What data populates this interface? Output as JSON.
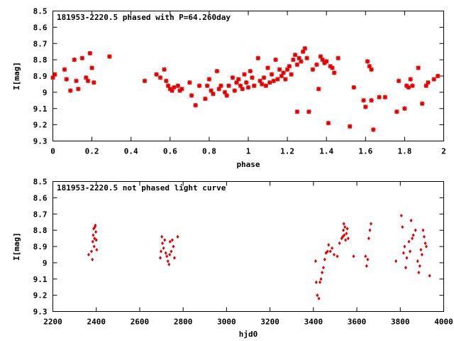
{
  "colors": {
    "points": "#e00000",
    "frame": "#000000",
    "background": "#ffffff"
  },
  "chart_data": [
    {
      "type": "scatter",
      "title": "181953-2220.5 phased with P=64.260day",
      "xlabel": "phase",
      "ylabel": "I[mag]",
      "xlim": [
        0,
        2
      ],
      "ylim": [
        8.5,
        9.3
      ],
      "y_inverted": true,
      "grid": false,
      "x_ticks": [
        "0",
        "0.2",
        "0.4",
        "0.6",
        "0.8",
        "1",
        "1.2",
        "1.4",
        "1.6",
        "1.8",
        "2"
      ],
      "y_ticks": [
        "8.5",
        "8.6",
        "8.7",
        "8.8",
        "8.9",
        "9",
        "9.1",
        "9.2",
        "9.3"
      ],
      "series": [
        {
          "points": [
            [
              0.0,
              8.91
            ],
            [
              0.01,
              8.89
            ],
            [
              0.06,
              8.86
            ],
            [
              0.07,
              8.92
            ],
            [
              0.09,
              8.99
            ],
            [
              0.11,
              8.8
            ],
            [
              0.12,
              8.93
            ],
            [
              0.13,
              8.98
            ],
            [
              0.15,
              8.79
            ],
            [
              0.17,
              8.91
            ],
            [
              0.18,
              8.93
            ],
            [
              0.19,
              8.76
            ],
            [
              0.2,
              8.85
            ],
            [
              0.21,
              8.94
            ],
            [
              0.29,
              8.78
            ],
            [
              0.47,
              8.93
            ],
            [
              0.53,
              8.89
            ],
            [
              0.55,
              8.91
            ],
            [
              0.57,
              8.86
            ],
            [
              0.58,
              8.93
            ],
            [
              0.59,
              8.96
            ],
            [
              0.6,
              8.98
            ],
            [
              0.61,
              8.99
            ],
            [
              0.62,
              8.97
            ],
            [
              0.64,
              8.96
            ],
            [
              0.65,
              8.99
            ],
            [
              0.66,
              8.98
            ],
            [
              0.7,
              8.94
            ],
            [
              0.71,
              9.02
            ],
            [
              0.73,
              9.08
            ],
            [
              0.75,
              8.96
            ],
            [
              0.78,
              9.04
            ],
            [
              0.79,
              8.96
            ],
            [
              0.8,
              8.92
            ],
            [
              0.81,
              8.99
            ],
            [
              0.82,
              9.01
            ],
            [
              0.84,
              8.87
            ],
            [
              0.85,
              8.98
            ],
            [
              0.86,
              8.96
            ],
            [
              0.88,
              9.0
            ],
            [
              0.89,
              9.02
            ],
            [
              0.9,
              8.96
            ],
            [
              0.92,
              8.91
            ],
            [
              0.93,
              8.99
            ],
            [
              0.94,
              8.94
            ],
            [
              0.95,
              8.92
            ],
            [
              0.96,
              8.96
            ],
            [
              0.97,
              8.98
            ],
            [
              0.98,
              8.89
            ],
            [
              0.99,
              8.94
            ],
            [
              1.0,
              8.97
            ],
            [
              1.01,
              8.87
            ],
            [
              1.02,
              8.91
            ],
            [
              1.03,
              8.96
            ],
            [
              1.05,
              8.79
            ],
            [
              1.06,
              8.93
            ],
            [
              1.07,
              8.95
            ],
            [
              1.08,
              8.91
            ],
            [
              1.09,
              8.96
            ],
            [
              1.1,
              8.85
            ],
            [
              1.11,
              8.94
            ],
            [
              1.12,
              8.89
            ],
            [
              1.13,
              8.93
            ],
            [
              1.14,
              8.8
            ],
            [
              1.15,
              8.92
            ],
            [
              1.16,
              8.86
            ],
            [
              1.17,
              8.9
            ],
            [
              1.18,
              8.88
            ],
            [
              1.19,
              8.92
            ],
            [
              1.2,
              8.86
            ],
            [
              1.21,
              8.84
            ],
            [
              1.22,
              8.89
            ],
            [
              1.23,
              8.8
            ],
            [
              1.24,
              8.77
            ],
            [
              1.25,
              8.83
            ],
            [
              1.25,
              9.12
            ],
            [
              1.26,
              8.79
            ],
            [
              1.27,
              8.81
            ],
            [
              1.28,
              8.75
            ],
            [
              1.29,
              8.73
            ],
            [
              1.3,
              8.79
            ],
            [
              1.31,
              9.12
            ],
            [
              1.33,
              8.86
            ],
            [
              1.35,
              8.83
            ],
            [
              1.36,
              8.98
            ],
            [
              1.37,
              8.78
            ],
            [
              1.38,
              8.8
            ],
            [
              1.39,
              8.82
            ],
            [
              1.4,
              8.81
            ],
            [
              1.41,
              9.19
            ],
            [
              1.42,
              8.84
            ],
            [
              1.43,
              8.85
            ],
            [
              1.44,
              8.88
            ],
            [
              1.46,
              8.79
            ],
            [
              1.52,
              9.21
            ],
            [
              1.54,
              8.97
            ],
            [
              1.59,
              9.05
            ],
            [
              1.6,
              9.09
            ],
            [
              1.61,
              8.81
            ],
            [
              1.62,
              8.84
            ],
            [
              1.63,
              8.86
            ],
            [
              1.63,
              9.05
            ],
            [
              1.64,
              9.23
            ],
            [
              1.67,
              9.03
            ],
            [
              1.7,
              9.03
            ],
            [
              1.76,
              9.12
            ],
            [
              1.77,
              8.93
            ],
            [
              1.8,
              9.1
            ],
            [
              1.81,
              8.96
            ],
            [
              1.82,
              8.97
            ],
            [
              1.83,
              8.92
            ],
            [
              1.84,
              8.96
            ],
            [
              1.87,
              8.85
            ],
            [
              1.89,
              9.07
            ],
            [
              1.91,
              8.96
            ],
            [
              1.92,
              8.94
            ],
            [
              1.95,
              8.92
            ],
            [
              1.97,
              8.9
            ]
          ]
        }
      ]
    },
    {
      "type": "scatter",
      "title": "181953-2220.5 not phased light curve",
      "xlabel": "hjd0",
      "ylabel": "I[mag]",
      "xlim": [
        2200,
        4000
      ],
      "ylim": [
        8.5,
        9.3
      ],
      "y_inverted": true,
      "grid": false,
      "x_ticks": [
        "2200",
        "2400",
        "2600",
        "2800",
        "3000",
        "3200",
        "3400",
        "3600",
        "3800",
        "4000"
      ],
      "y_ticks": [
        "8.5",
        "8.6",
        "8.7",
        "8.8",
        "8.9",
        "9",
        "9.1",
        "9.2",
        "9.3"
      ],
      "series": [
        {
          "points": [
            [
              2365,
              8.95
            ],
            [
              2378,
              8.93
            ],
            [
              2382,
              8.98
            ],
            [
              2384,
              8.87
            ],
            [
              2386,
              8.83
            ],
            [
              2388,
              8.79
            ],
            [
              2390,
              8.9
            ],
            [
              2392,
              8.85
            ],
            [
              2394,
              8.78
            ],
            [
              2396,
              8.77
            ],
            [
              2398,
              8.81
            ],
            [
              2400,
              8.86
            ],
            [
              2402,
              8.92
            ],
            [
              2695,
              8.97
            ],
            [
              2698,
              8.93
            ],
            [
              2702,
              8.84
            ],
            [
              2705,
              8.88
            ],
            [
              2710,
              8.91
            ],
            [
              2715,
              8.86
            ],
            [
              2720,
              8.94
            ],
            [
              2725,
              8.96
            ],
            [
              2730,
              8.99
            ],
            [
              2735,
              9.01
            ],
            [
              2738,
              8.95
            ],
            [
              2740,
              8.87
            ],
            [
              2745,
              8.93
            ],
            [
              2750,
              8.86
            ],
            [
              2755,
              8.9
            ],
            [
              2760,
              8.97
            ],
            [
              2775,
              8.84
            ],
            [
              3410,
              8.99
            ],
            [
              3413,
              9.12
            ],
            [
              3418,
              9.2
            ],
            [
              3425,
              9.22
            ],
            [
              3430,
              9.12
            ],
            [
              3435,
              9.1
            ],
            [
              3440,
              9.06
            ],
            [
              3446,
              9.03
            ],
            [
              3452,
              8.98
            ],
            [
              3458,
              8.94
            ],
            [
              3465,
              8.93
            ],
            [
              3470,
              8.89
            ],
            [
              3478,
              8.93
            ],
            [
              3486,
              8.91
            ],
            [
              3495,
              8.95
            ],
            [
              3510,
              8.96
            ],
            [
              3520,
              8.88
            ],
            [
              3530,
              8.85
            ],
            [
              3535,
              8.84
            ],
            [
              3538,
              8.8
            ],
            [
              3540,
              8.76
            ],
            [
              3542,
              8.83
            ],
            [
              3545,
              8.78
            ],
            [
              3548,
              8.86
            ],
            [
              3552,
              8.82
            ],
            [
              3556,
              8.79
            ],
            [
              3560,
              8.85
            ],
            [
              3585,
              8.96
            ],
            [
              3640,
              8.96
            ],
            [
              3645,
              9.02
            ],
            [
              3650,
              8.98
            ],
            [
              3655,
              8.85
            ],
            [
              3660,
              8.8
            ],
            [
              3665,
              8.76
            ],
            [
              3780,
              8.99
            ],
            [
              3805,
              8.71
            ],
            [
              3810,
              8.78
            ],
            [
              3815,
              8.94
            ],
            [
              3820,
              8.9
            ],
            [
              3825,
              9.03
            ],
            [
              3830,
              8.97
            ],
            [
              3840,
              8.87
            ],
            [
              3845,
              8.93
            ],
            [
              3850,
              8.74
            ],
            [
              3855,
              8.85
            ],
            [
              3860,
              8.83
            ],
            [
              3870,
              8.8
            ],
            [
              3880,
              8.99
            ],
            [
              3885,
              9.06
            ],
            [
              3890,
              9.02
            ],
            [
              3895,
              8.92
            ],
            [
              3900,
              8.95
            ],
            [
              3905,
              8.8
            ],
            [
              3910,
              8.84
            ],
            [
              3915,
              8.88
            ],
            [
              3920,
              8.9
            ],
            [
              3935,
              9.08
            ]
          ]
        }
      ]
    }
  ]
}
